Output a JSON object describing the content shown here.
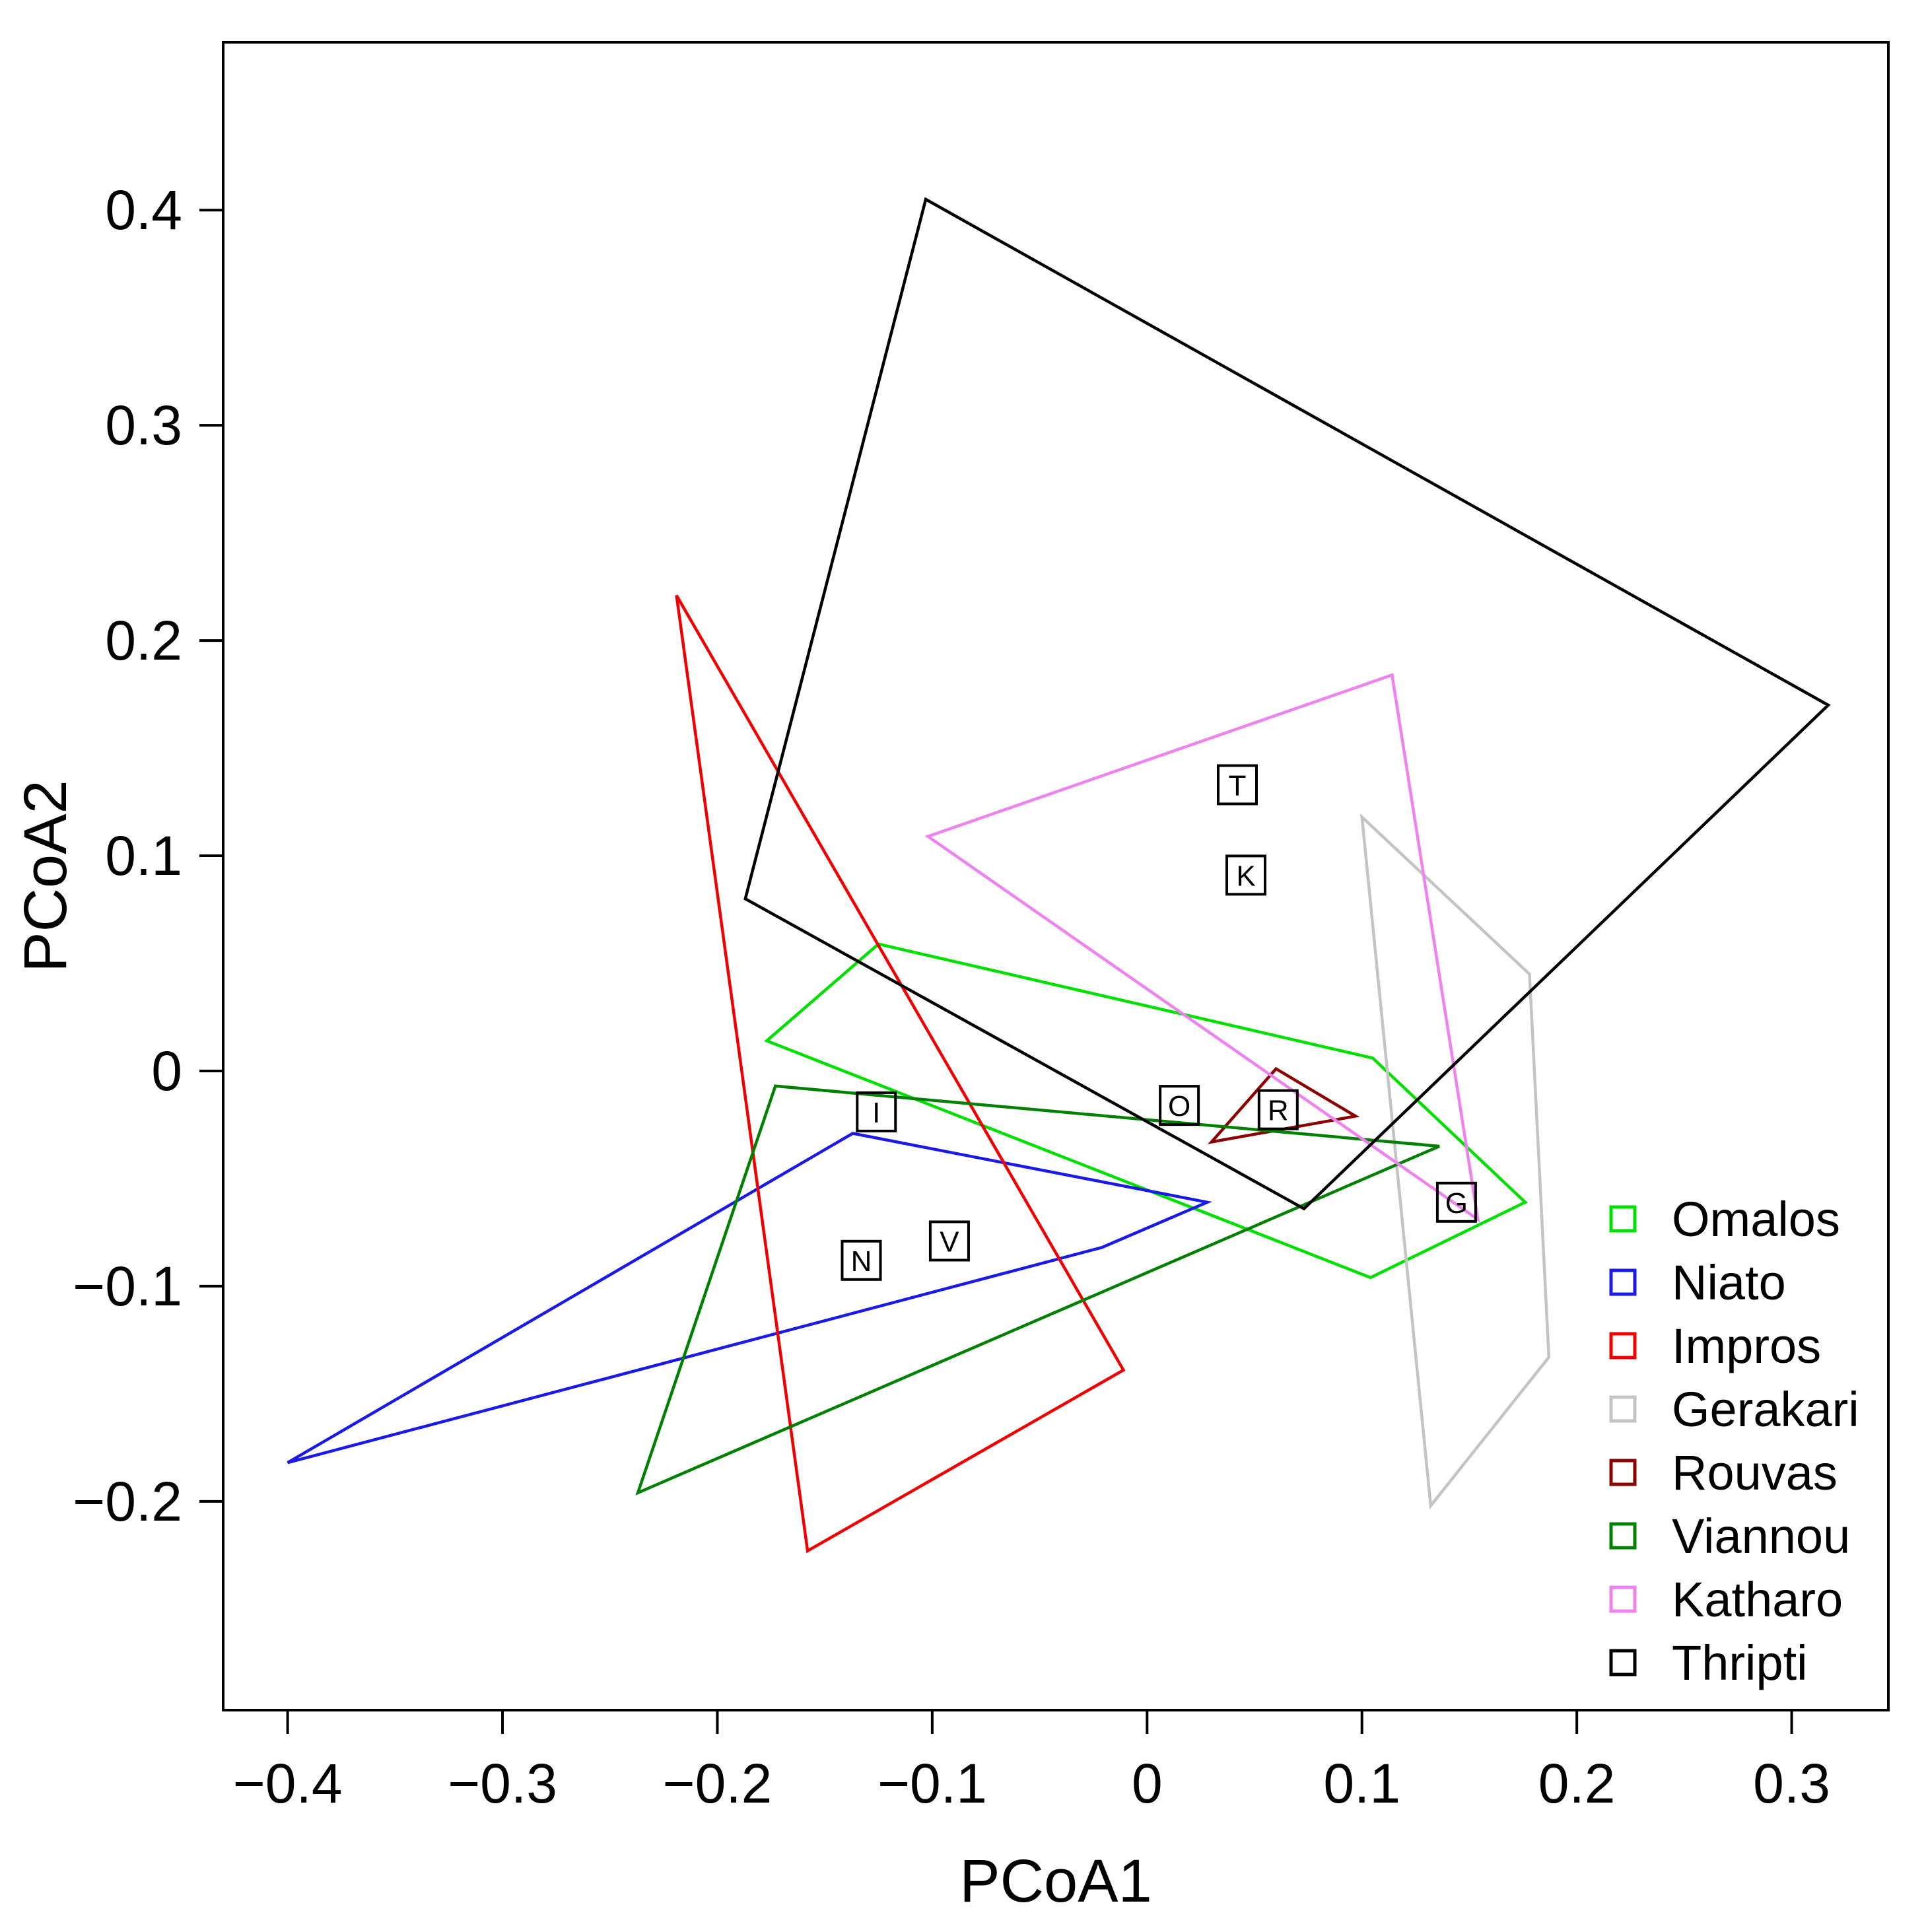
{
  "chart_data": {
    "type": "scatter",
    "title": "",
    "xlabel": "PCoA1",
    "ylabel": "PCoA2",
    "xlim": [
      -0.43,
      0.345
    ],
    "ylim": [
      -0.297,
      0.478
    ],
    "xticks": [
      -0.4,
      -0.3,
      -0.2,
      -0.1,
      0,
      0.1,
      0.2,
      0.3
    ],
    "xtick_labels": [
      "−0.4",
      "−0.3",
      "−0.2",
      "−0.1",
      "0",
      "0.1",
      "0.2",
      "0.3"
    ],
    "yticks": [
      -0.2,
      -0.1,
      0,
      0.1,
      0.2,
      0.3,
      0.4
    ],
    "ytick_labels": [
      "−0.2",
      "−0.1",
      "0",
      "0.1",
      "0.2",
      "0.3",
      "0.4"
    ],
    "grid": false,
    "legend_position": "bottom-right",
    "series": [
      {
        "name": "Omalos",
        "color": "#00e000",
        "label": "O",
        "centroid": [
          0.015,
          -0.016
        ],
        "hull": [
          [
            -0.125,
            0.059
          ],
          [
            0.105,
            0.006
          ],
          [
            0.176,
            -0.061
          ],
          [
            0.104,
            -0.096
          ],
          [
            -0.177,
            0.014
          ]
        ]
      },
      {
        "name": "Niato",
        "color": "#1a1ae6",
        "label": "N",
        "centroid": [
          -0.133,
          -0.088
        ],
        "hull": [
          [
            -0.137,
            -0.029
          ],
          [
            0.028,
            -0.061
          ],
          [
            -0.021,
            -0.082
          ],
          [
            -0.4,
            -0.182
          ]
        ]
      },
      {
        "name": "Impros",
        "color": "#f00000",
        "label": "I",
        "centroid": [
          -0.126,
          -0.019
        ],
        "hull": [
          [
            -0.219,
            0.221
          ],
          [
            -0.011,
            -0.139
          ],
          [
            -0.158,
            -0.223
          ]
        ]
      },
      {
        "name": "Gerakari",
        "color": "#c4c4c4",
        "label": "G",
        "centroid": [
          0.144,
          -0.061
        ],
        "hull": [
          [
            0.1,
            0.118
          ],
          [
            0.178,
            0.045
          ],
          [
            0.187,
            -0.133
          ],
          [
            0.132,
            -0.202
          ]
        ]
      },
      {
        "name": "Rouvas",
        "color": "#8b0000",
        "label": "R",
        "centroid": [
          0.061,
          -0.018
        ],
        "hull": [
          [
            0.06,
            0.001
          ],
          [
            0.097,
            -0.021
          ],
          [
            0.03,
            -0.033
          ]
        ]
      },
      {
        "name": "Viannou",
        "color": "#008000",
        "label": "V",
        "centroid": [
          -0.092,
          -0.079
        ],
        "hull": [
          [
            -0.173,
            -0.007
          ],
          [
            0.136,
            -0.035
          ],
          [
            -0.237,
            -0.196
          ]
        ]
      },
      {
        "name": "Katharo",
        "color": "#ee82ee",
        "label": "K",
        "centroid": [
          0.046,
          0.091
        ],
        "hull": [
          [
            -0.102,
            0.109
          ],
          [
            0.114,
            0.184
          ],
          [
            0.154,
            -0.069
          ]
        ]
      },
      {
        "name": "Thripti",
        "color": "#000000",
        "label": "T",
        "centroid": [
          0.042,
          0.133
        ],
        "hull": [
          [
            -0.103,
            0.405
          ],
          [
            0.317,
            0.17
          ],
          [
            0.073,
            -0.064
          ],
          [
            -0.187,
            0.08
          ]
        ]
      }
    ]
  }
}
